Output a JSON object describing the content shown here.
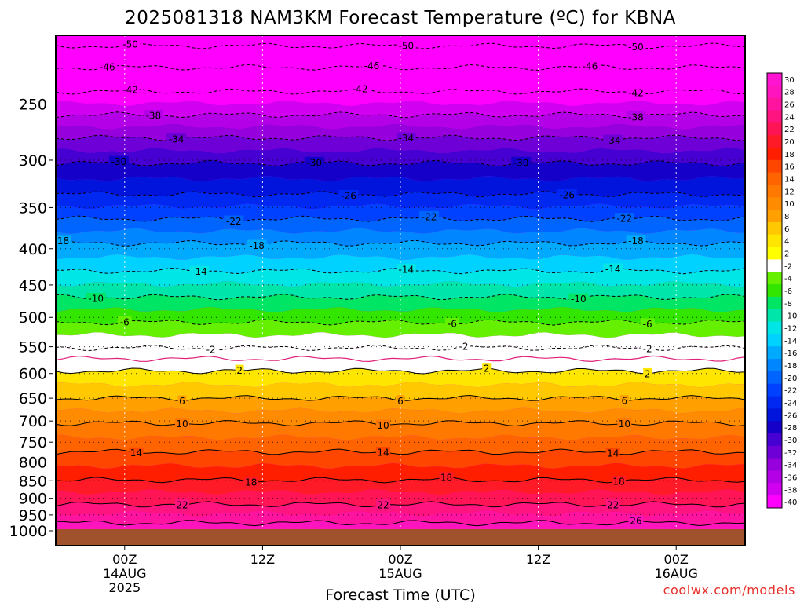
{
  "chart_data": {
    "type": "heatmap",
    "title": "2025081318 NAM3KM Forecast Temperature (ºC) for KBNA",
    "xlabel": "Forecast Time (UTC)",
    "ylabel": "",
    "credit": "coolwx.com/models",
    "x_range_hours": [
      -6,
      54
    ],
    "y_scale": "log",
    "y_range_hPa": [
      1000,
      200
    ],
    "y_ticks": [
      250,
      300,
      350,
      400,
      450,
      500,
      550,
      600,
      650,
      700,
      750,
      800,
      850,
      900,
      950,
      1000
    ],
    "x_ticks": [
      {
        "hour": 0,
        "line1": "00Z",
        "line2": "14AUG",
        "line3": "2025"
      },
      {
        "hour": 12,
        "line1": "12Z",
        "line2": "",
        "line3": ""
      },
      {
        "hour": 24,
        "line1": "00Z",
        "line2": "15AUG",
        "line3": ""
      },
      {
        "hour": 36,
        "line1": "12Z",
        "line2": "",
        "line3": ""
      },
      {
        "hour": 48,
        "line1": "00Z",
        "line2": "16AUG",
        "line3": ""
      }
    ],
    "dotted_levels_hPa": [
      250,
      300,
      350,
      400,
      450,
      500,
      550,
      600,
      650,
      700,
      750,
      800,
      850,
      900,
      950
    ],
    "colorbar": {
      "labels": [
        "30",
        "28",
        "26",
        "24",
        "22",
        "20",
        "18",
        "16",
        "14",
        "12",
        "10",
        "8",
        "6",
        "4",
        "2",
        "-2",
        "-4",
        "-6",
        "-8",
        "-10",
        "-12",
        "-14",
        "-16",
        "-18",
        "-20",
        "-22",
        "-24",
        "-26",
        "-28",
        "-30",
        "-32",
        "-34",
        "-36",
        "-38",
        "-40"
      ],
      "colors": [
        "#ff14d2",
        "#ff14be",
        "#ff14a0",
        "#ff1480",
        "#ff1455",
        "#ff1a28",
        "#ff1e00",
        "#ff4600",
        "#ff6400",
        "#ff7800",
        "#ff8c00",
        "#ffa000",
        "#ffc800",
        "#ffe600",
        "#ffff00",
        "#ffffff",
        "#64f000",
        "#32e600",
        "#00e664",
        "#00e6aa",
        "#00e6e6",
        "#00d2ff",
        "#00aaff",
        "#0087ff",
        "#0064ff",
        "#0041ff",
        "#0028f0",
        "#0014dc",
        "#1400c8",
        "#4600d2",
        "#6e00d7",
        "#9600dc",
        "#b400e6",
        "#d200f0",
        "#ff00ff"
      ]
    },
    "ground_color": "#a0522d",
    "zero_line_color": "#e0207a",
    "contours": [
      {
        "value": -50,
        "dashed": true,
        "pressure_hPa": 207,
        "labels_hours": [
          0.5,
          24.5,
          44.5
        ]
      },
      {
        "value": -46,
        "dashed": true,
        "pressure_hPa": 222,
        "labels_hours": [
          -1.5,
          21.5,
          40.5
        ]
      },
      {
        "value": -42,
        "dashed": true,
        "pressure_hPa": 240,
        "labels_hours": [
          0.5,
          20.5,
          44.5
        ]
      },
      {
        "value": -38,
        "dashed": true,
        "pressure_hPa": 259,
        "labels_hours": [
          2.5,
          44.5
        ]
      },
      {
        "value": -34,
        "dashed": true,
        "pressure_hPa": 279,
        "labels_hours": [
          4.5,
          24.5,
          42.5
        ]
      },
      {
        "value": -30,
        "dashed": true,
        "pressure_hPa": 303,
        "labels_hours": [
          -0.5,
          16.5,
          34.5
        ]
      },
      {
        "value": -26,
        "dashed": true,
        "pressure_hPa": 335,
        "labels_hours": [
          19.5,
          38.5
        ]
      },
      {
        "value": -22,
        "dashed": true,
        "pressure_hPa": 363,
        "labels_hours": [
          9.5,
          26.5,
          43.5
        ]
      },
      {
        "value": -18,
        "dashed": true,
        "pressure_hPa": 393,
        "labels_hours": [
          -5.5,
          11.5,
          44.5
        ]
      },
      {
        "value": -14,
        "dashed": true,
        "pressure_hPa": 430,
        "labels_hours": [
          6.5,
          24.5,
          42.5
        ]
      },
      {
        "value": -10,
        "dashed": true,
        "pressure_hPa": 468,
        "labels_hours": [
          -2.5,
          39.5
        ]
      },
      {
        "value": -6,
        "dashed": true,
        "pressure_hPa": 508,
        "labels_hours": [
          0.0,
          28.5,
          45.5
        ]
      },
      {
        "value": -2,
        "dashed": true,
        "pressure_hPa": 552,
        "labels_hours": [
          7.5,
          29.5,
          45.5
        ]
      },
      {
        "value": 0,
        "dashed": false,
        "pressure_hPa": 572,
        "labels_hours": []
      },
      {
        "value": 2,
        "dashed": false,
        "pressure_hPa": 595,
        "labels_hours": [
          10.0,
          31.5,
          45.5
        ]
      },
      {
        "value": 6,
        "dashed": false,
        "pressure_hPa": 650,
        "labels_hours": [
          5.0,
          24.0,
          43.5
        ]
      },
      {
        "value": 10,
        "dashed": false,
        "pressure_hPa": 705,
        "labels_hours": [
          5.0,
          22.5,
          43.5
        ]
      },
      {
        "value": 14,
        "dashed": false,
        "pressure_hPa": 774,
        "labels_hours": [
          1.0,
          22.5,
          42.5
        ]
      },
      {
        "value": 18,
        "dashed": false,
        "pressure_hPa": 848,
        "labels_hours": [
          11.0,
          28.0,
          43.0
        ]
      },
      {
        "value": 22,
        "dashed": false,
        "pressure_hPa": 918,
        "labels_hours": [
          5.0,
          22.5,
          42.5
        ]
      },
      {
        "value": 26,
        "dashed": false,
        "pressure_hPa": 975,
        "labels_hours": [
          44.5
        ]
      }
    ]
  }
}
